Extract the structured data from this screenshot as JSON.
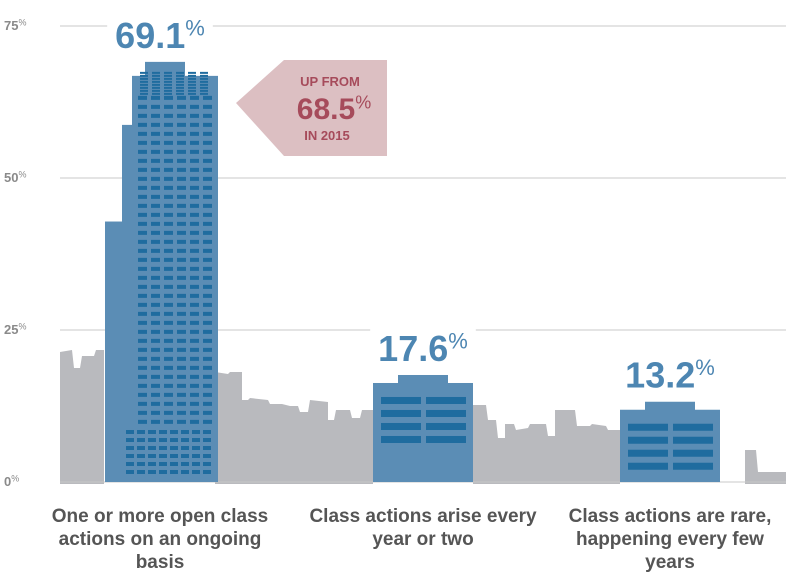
{
  "chart_data": {
    "type": "bar",
    "categories": [
      "One or more open class actions on an ongoing basis",
      "Class actions arise every year or two",
      "Class actions are rare, happening every few years"
    ],
    "values": [
      69.1,
      17.6,
      13.2
    ],
    "value_labels": [
      "69.1%",
      "17.6%",
      "13.2%"
    ],
    "color": "#5b8db5",
    "label_color": "#4d86b2",
    "ylim": [
      0,
      75
    ],
    "yticks": [
      {
        "value": 0,
        "label": "0%"
      },
      {
        "value": 25,
        "label": "25%"
      },
      {
        "value": 50,
        "label": "50%"
      },
      {
        "value": 75,
        "label": "75%"
      }
    ],
    "grid": true,
    "annotation": {
      "line1": "UP FROM",
      "value": "68.5%",
      "line2": "IN 2015"
    }
  }
}
